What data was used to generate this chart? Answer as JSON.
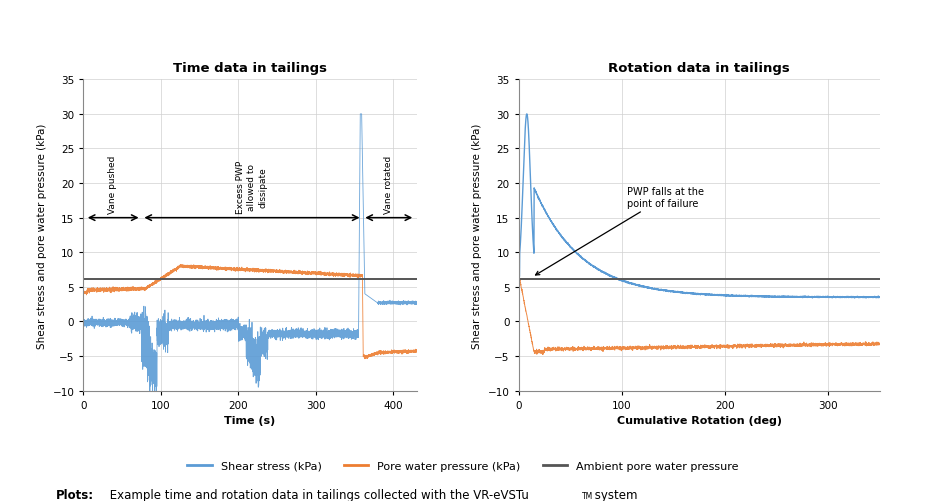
{
  "title_left": "Time data in tailings",
  "title_right": "Rotation data in tailings",
  "ylabel": "Shear stress and pore water pressure (kPa)",
  "xlabel_left": "Time (s)",
  "xlabel_right": "Cumulative Rotation (deg)",
  "ylim": [
    -10,
    35
  ],
  "yticks": [
    -10,
    -5,
    0,
    5,
    10,
    15,
    20,
    25,
    30,
    35
  ],
  "xlim_left": [
    0,
    430
  ],
  "xticks_left": [
    0,
    100,
    200,
    300,
    400
  ],
  "xlim_right": [
    0,
    350
  ],
  "xticks_right": [
    0,
    100,
    200,
    300
  ],
  "ambient_pwp": 6.2,
  "blue_color": "#5B9BD5",
  "orange_color": "#ED7D31",
  "black_color": "#000000",
  "annotation_text": "PWP falls at the\npoint of failure",
  "caption_bold": "Plots:",
  "caption_text": " Example time and rotation data in tailings collected with the VR-eVSTu",
  "caption_superscript": "TM",
  "caption_end": " system",
  "legend_labels": [
    "Shear stress (kPa)",
    "Pore water pressure (kPa)",
    "Ambient pore water pressure"
  ],
  "bg_color": "#FFFFFF"
}
